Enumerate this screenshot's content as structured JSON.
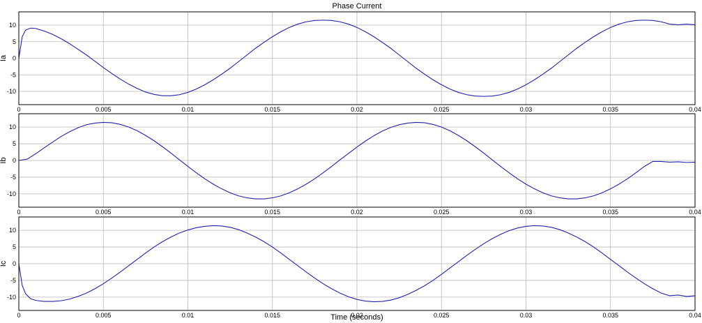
{
  "chart_data": [
    {
      "type": "line",
      "title": "Phase Current",
      "xlabel": "",
      "ylabel": "Ia",
      "xlim": [
        0,
        0.04
      ],
      "ylim": [
        -14,
        14
      ],
      "xticks": [
        0,
        0.005,
        0.01,
        0.015,
        0.02,
        0.025,
        0.03,
        0.035,
        0.04
      ],
      "xtick_labels": [
        "0",
        "0.005",
        "0.01",
        "0.015",
        "0.02",
        "0.025",
        "0.03",
        "0.035",
        "0.04"
      ],
      "yticks": [
        10,
        5,
        0,
        -5,
        -10
      ],
      "ytick_labels": [
        "10",
        "5",
        "0",
        "-5",
        "-10"
      ],
      "grid": true,
      "series": [
        {
          "color": "#2222aa",
          "x": [
            0,
            0.0002,
            0.0004,
            0.0007,
            0.001,
            0.0015,
            0.002,
            0.0025,
            0.003,
            0.0035,
            0.004,
            0.0045,
            0.005,
            0.0055,
            0.006,
            0.0065,
            0.007,
            0.0075,
            0.008,
            0.0085,
            0.009,
            0.0095,
            0.01,
            0.0105,
            0.011,
            0.0115,
            0.012,
            0.0125,
            0.013,
            0.0135,
            0.014,
            0.0145,
            0.015,
            0.0155,
            0.016,
            0.0165,
            0.017,
            0.0175,
            0.018,
            0.0185,
            0.019,
            0.0195,
            0.02,
            0.0205,
            0.021,
            0.0215,
            0.022,
            0.0225,
            0.023,
            0.0235,
            0.024,
            0.0245,
            0.025,
            0.0255,
            0.026,
            0.0265,
            0.027,
            0.0275,
            0.028,
            0.0285,
            0.029,
            0.0295,
            0.03,
            0.0305,
            0.031,
            0.0315,
            0.032,
            0.0325,
            0.033,
            0.0335,
            0.034,
            0.0345,
            0.035,
            0.0355,
            0.036,
            0.0365,
            0.037,
            0.0375,
            0.038,
            0.0385,
            0.039,
            0.0395,
            0.04
          ],
          "y": [
            0,
            6.5,
            8.5,
            9.1,
            9.0,
            8.2,
            7.2,
            5.9,
            4.4,
            2.7,
            1.0,
            -0.9,
            -2.8,
            -4.6,
            -6.3,
            -7.8,
            -9.1,
            -10.2,
            -10.9,
            -11.3,
            -11.3,
            -11.0,
            -10.3,
            -9.3,
            -8.0,
            -6.5,
            -4.8,
            -3.0,
            -1.0,
            1.0,
            3.0,
            4.8,
            6.5,
            8.0,
            9.3,
            10.3,
            11.0,
            11.4,
            11.5,
            11.4,
            11.0,
            10.3,
            9.3,
            8.0,
            6.5,
            4.8,
            3.0,
            1.0,
            -1.0,
            -3.0,
            -4.8,
            -6.5,
            -8.0,
            -9.3,
            -10.3,
            -11.0,
            -11.4,
            -11.5,
            -11.4,
            -11.0,
            -10.3,
            -9.3,
            -8.0,
            -6.5,
            -4.8,
            -3.0,
            -1.0,
            1.0,
            3.0,
            4.8,
            6.5,
            8.0,
            9.3,
            10.3,
            11.0,
            11.4,
            11.5,
            11.4,
            11.0,
            10.3,
            10.1,
            10.3,
            10.1
          ]
        }
      ]
    },
    {
      "type": "line",
      "title": "",
      "xlabel": "",
      "ylabel": "Ib",
      "xlim": [
        0,
        0.04
      ],
      "ylim": [
        -14,
        14
      ],
      "xticks": [
        0,
        0.005,
        0.01,
        0.015,
        0.02,
        0.025,
        0.03,
        0.035,
        0.04
      ],
      "xtick_labels": [
        "0",
        "0.005",
        "0.01",
        "0.015",
        "0.02",
        "0.025",
        "0.03",
        "0.035",
        "0.04"
      ],
      "yticks": [
        10,
        5,
        0,
        -5,
        -10
      ],
      "ytick_labels": [
        "10",
        "5",
        "0",
        "-5",
        "-10"
      ],
      "grid": true,
      "series": [
        {
          "color": "#2222aa",
          "x": [
            0,
            0.0005,
            0.001,
            0.0015,
            0.002,
            0.0025,
            0.003,
            0.0035,
            0.004,
            0.0045,
            0.005,
            0.0055,
            0.006,
            0.0065,
            0.007,
            0.0075,
            0.008,
            0.0085,
            0.009,
            0.0095,
            0.01,
            0.0105,
            0.011,
            0.0115,
            0.012,
            0.0125,
            0.013,
            0.0135,
            0.014,
            0.0145,
            0.015,
            0.0155,
            0.016,
            0.0165,
            0.017,
            0.0175,
            0.018,
            0.0185,
            0.019,
            0.0195,
            0.02,
            0.0205,
            0.021,
            0.0215,
            0.022,
            0.0225,
            0.023,
            0.0235,
            0.024,
            0.0245,
            0.025,
            0.0255,
            0.026,
            0.0265,
            0.027,
            0.0275,
            0.028,
            0.0285,
            0.029,
            0.0295,
            0.03,
            0.0305,
            0.031,
            0.0315,
            0.032,
            0.0325,
            0.033,
            0.0335,
            0.034,
            0.0345,
            0.035,
            0.0355,
            0.036,
            0.0365,
            0.037,
            0.0375,
            0.038,
            0.0385,
            0.039,
            0.0395,
            0.04
          ],
          "y": [
            0,
            0.4,
            2.0,
            3.8,
            5.5,
            7.2,
            8.6,
            9.8,
            10.7,
            11.2,
            11.4,
            11.3,
            10.8,
            10.0,
            8.9,
            7.5,
            5.9,
            4.1,
            2.2,
            0.2,
            -1.8,
            -3.7,
            -5.5,
            -7.1,
            -8.5,
            -9.7,
            -10.6,
            -11.2,
            -11.5,
            -11.5,
            -11.2,
            -10.6,
            -9.7,
            -8.5,
            -7.1,
            -5.5,
            -3.7,
            -1.8,
            0.2,
            2.1,
            4.0,
            5.8,
            7.4,
            8.8,
            9.9,
            10.7,
            11.2,
            11.4,
            11.3,
            10.8,
            10.0,
            8.9,
            7.5,
            5.9,
            4.1,
            2.2,
            0.2,
            -1.8,
            -3.7,
            -5.5,
            -7.1,
            -8.5,
            -9.7,
            -10.6,
            -11.2,
            -11.5,
            -11.5,
            -11.2,
            -10.6,
            -9.7,
            -8.5,
            -7.1,
            -5.5,
            -3.7,
            -1.8,
            -0.3,
            -0.3,
            -0.5,
            -0.4,
            -0.6,
            -0.5
          ]
        }
      ]
    },
    {
      "type": "line",
      "title": "",
      "xlabel": "Time (seconds)",
      "ylabel": "Ic",
      "xlim": [
        0,
        0.04
      ],
      "ylim": [
        -14,
        14
      ],
      "xticks": [
        0,
        0.005,
        0.01,
        0.015,
        0.02,
        0.025,
        0.03,
        0.035,
        0.04
      ],
      "xtick_labels": [
        "0",
        "0.005",
        "0.01",
        "0.015",
        "0.02",
        "0.025",
        "0.03",
        "0.035",
        "0.04"
      ],
      "yticks": [
        10,
        5,
        0,
        -5,
        -10
      ],
      "ytick_labels": [
        "10",
        "5",
        "0",
        "-5",
        "-10"
      ],
      "grid": true,
      "series": [
        {
          "color": "#2222aa",
          "x": [
            0,
            0.0002,
            0.0004,
            0.0007,
            0.001,
            0.0015,
            0.002,
            0.0025,
            0.003,
            0.0035,
            0.004,
            0.0045,
            0.005,
            0.0055,
            0.006,
            0.0065,
            0.007,
            0.0075,
            0.008,
            0.0085,
            0.009,
            0.0095,
            0.01,
            0.0105,
            0.011,
            0.0115,
            0.012,
            0.0125,
            0.013,
            0.0135,
            0.014,
            0.0145,
            0.015,
            0.0155,
            0.016,
            0.0165,
            0.017,
            0.0175,
            0.018,
            0.0185,
            0.019,
            0.0195,
            0.02,
            0.0205,
            0.021,
            0.0215,
            0.022,
            0.0225,
            0.023,
            0.0235,
            0.024,
            0.0245,
            0.025,
            0.0255,
            0.026,
            0.0265,
            0.027,
            0.0275,
            0.028,
            0.0285,
            0.029,
            0.0295,
            0.03,
            0.0305,
            0.031,
            0.0315,
            0.032,
            0.0325,
            0.033,
            0.0335,
            0.034,
            0.0345,
            0.035,
            0.0355,
            0.036,
            0.0365,
            0.037,
            0.0375,
            0.038,
            0.0385,
            0.039,
            0.0395,
            0.04
          ],
          "y": [
            0,
            -6.5,
            -9.0,
            -10.5,
            -11.0,
            -11.3,
            -11.3,
            -11.1,
            -10.6,
            -9.8,
            -8.8,
            -7.5,
            -6.0,
            -4.3,
            -2.5,
            -0.6,
            1.3,
            3.2,
            5.0,
            6.6,
            8.0,
            9.2,
            10.1,
            10.8,
            11.2,
            11.4,
            11.3,
            10.9,
            10.2,
            9.2,
            8.0,
            6.6,
            5.0,
            3.2,
            1.3,
            -0.6,
            -2.5,
            -4.3,
            -6.0,
            -7.5,
            -8.8,
            -9.9,
            -10.7,
            -11.2,
            -11.4,
            -11.3,
            -10.9,
            -10.2,
            -9.2,
            -8.0,
            -6.6,
            -5.0,
            -3.2,
            -1.3,
            0.6,
            2.5,
            4.3,
            6.0,
            7.5,
            8.8,
            9.9,
            10.7,
            11.2,
            11.4,
            11.3,
            10.9,
            10.2,
            9.2,
            8.0,
            6.6,
            5.0,
            3.2,
            1.3,
            -0.6,
            -2.5,
            -4.3,
            -6.0,
            -7.5,
            -8.8,
            -9.6,
            -9.4,
            -9.8,
            -9.6
          ]
        }
      ]
    }
  ]
}
